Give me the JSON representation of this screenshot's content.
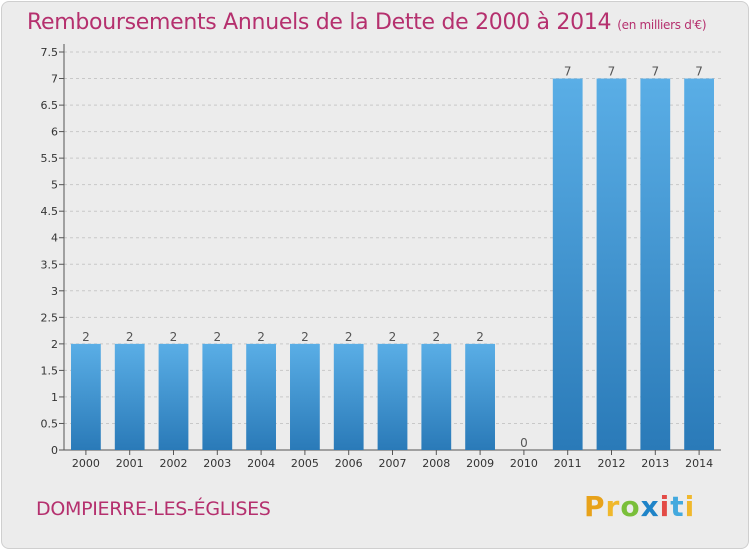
{
  "header": {
    "title": "Remboursements Annuels de la Dette de 2000 à 2014",
    "units": "(en milliers d'€)"
  },
  "footer": {
    "commune": "DOMPIERRE-LES-ÉGLISES",
    "brand_letters": [
      "P",
      "r",
      "o",
      "x",
      "i",
      "t",
      "i"
    ],
    "brand_colors": [
      "#e8a21a",
      "#f0b82c",
      "#7abf3a",
      "#1f84c8",
      "#e34b46",
      "#43a9de",
      "#f0b82c"
    ]
  },
  "colors": {
    "bar_light": "#5aaee6",
    "bar_dark": "#2a7ab8",
    "title": "#b5306e"
  },
  "chart_data": {
    "type": "bar",
    "categories": [
      "2000",
      "2001",
      "2002",
      "2003",
      "2004",
      "2005",
      "2006",
      "2007",
      "2008",
      "2009",
      "2010",
      "2011",
      "2012",
      "2013",
      "2014"
    ],
    "values": [
      2,
      2,
      2,
      2,
      2,
      2,
      2,
      2,
      2,
      2,
      0,
      7,
      7,
      7,
      7
    ],
    "data_labels": [
      "2",
      "2",
      "2",
      "2",
      "2",
      "2",
      "2",
      "2",
      "2",
      "2",
      "0",
      "7",
      "7",
      "7",
      "7"
    ],
    "y_ticks": [
      0,
      0.5,
      1,
      1.5,
      2,
      2.5,
      3,
      3.5,
      4,
      4.5,
      5,
      5.5,
      6,
      6.5,
      7,
      7.5
    ],
    "y_tick_labels": [
      "0",
      "0.5",
      "1",
      "1.5",
      "2",
      "2.5",
      "3",
      "3.5",
      "4",
      "4.5",
      "5",
      "5.5",
      "6",
      "6.5",
      "7",
      "7.5"
    ],
    "ylim": [
      0,
      7.5
    ],
    "title": "Remboursements Annuels de la Dette de 2000 à 2014",
    "xlabel": "",
    "ylabel": "",
    "grid": true
  }
}
